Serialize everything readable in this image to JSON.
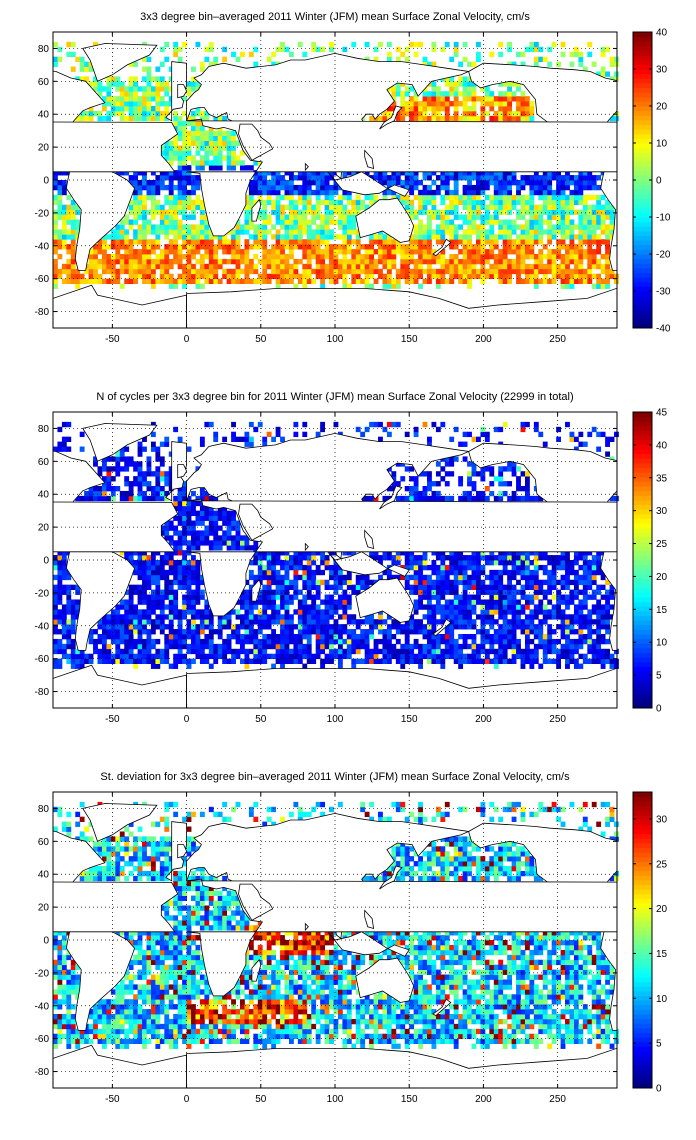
{
  "chart_data": [
    {
      "type": "heatmap",
      "title": "3x3 degree bin–averaged 2011 Winter (JFM) mean Surface Zonal Velocity, cm/s",
      "xlabel": "",
      "ylabel": "",
      "xlim": [
        -90,
        290
      ],
      "ylim": [
        -90,
        90
      ],
      "x_ticks": [
        "-50",
        "0",
        "50",
        "100",
        "150",
        "200",
        "250"
      ],
      "y_ticks": [
        "80",
        "60",
        "40",
        "20",
        "0",
        "-20",
        "-40",
        "-60",
        "-80"
      ],
      "grid": true,
      "colormap": "jet",
      "colorbar": {
        "min": -40,
        "max": 40,
        "ticks": [
          "40",
          "30",
          "20",
          "10",
          "0",
          "-10",
          "-20",
          "-30",
          "-40"
        ]
      },
      "bin_size_deg": 3
    },
    {
      "type": "heatmap",
      "title": "N of cycles per 3x3 degree bin for 2011 Winter (JFM) mean Surface Zonal Velocity (22999 in total)",
      "xlabel": "",
      "ylabel": "",
      "xlim": [
        -90,
        290
      ],
      "ylim": [
        -90,
        90
      ],
      "x_ticks": [
        "-50",
        "0",
        "50",
        "100",
        "150",
        "200",
        "250"
      ],
      "y_ticks": [
        "80",
        "60",
        "40",
        "20",
        "0",
        "-20",
        "-40",
        "-60",
        "-80"
      ],
      "grid": true,
      "colormap": "jet",
      "colorbar": {
        "min": 0,
        "max": 45,
        "ticks": [
          "45",
          "40",
          "35",
          "30",
          "25",
          "20",
          "15",
          "10",
          "5",
          "0"
        ]
      },
      "bin_size_deg": 3
    },
    {
      "type": "heatmap",
      "title": "St. deviation for 3x3 degree bin–averaged 2011 Winter (JFM) mean Surface Zonal Velocity, cm/s",
      "xlabel": "",
      "ylabel": "",
      "xlim": [
        -90,
        290
      ],
      "ylim": [
        -90,
        90
      ],
      "x_ticks": [
        "-50",
        "0",
        "50",
        "100",
        "150",
        "200",
        "250"
      ],
      "y_ticks": [
        "80",
        "60",
        "40",
        "20",
        "0",
        "-20",
        "-40",
        "-60",
        "-80"
      ],
      "grid": true,
      "colormap": "jet",
      "colorbar": {
        "min": 0,
        "max": 33,
        "ticks": [
          "30",
          "25",
          "20",
          "15",
          "10",
          "5",
          "0"
        ]
      },
      "bin_size_deg": 3
    }
  ]
}
